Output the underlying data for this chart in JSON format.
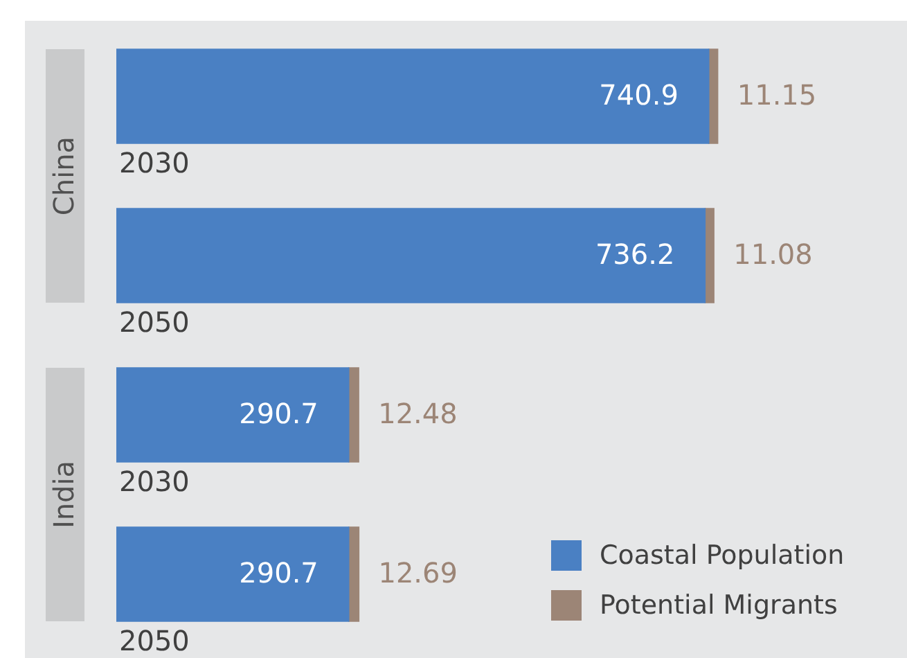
{
  "chart_data": {
    "type": "bar",
    "orientation": "horizontal",
    "stacked": true,
    "categories": [
      "2030",
      "2050",
      "2030",
      "2050"
    ],
    "series": [
      {
        "name": "Coastal Population",
        "color": "#4a80c3",
        "values": [
          740.9,
          736.2,
          290.7,
          290.7
        ]
      },
      {
        "name": "Potential Migrants",
        "color": "#9c8576",
        "values": [
          11.15,
          11.08,
          12.48,
          12.69
        ]
      }
    ],
    "annotations": [
      "China",
      "India"
    ],
    "data_labels": true,
    "legend": "bottom right"
  }
}
